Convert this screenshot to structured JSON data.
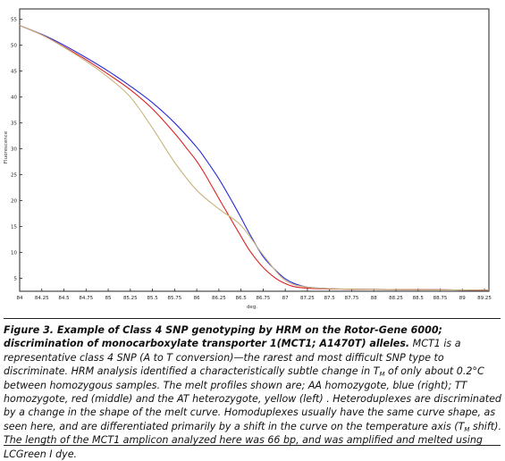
{
  "chart_data": {
    "type": "line",
    "ylabel": "Fluorescence",
    "xlabel": "deg.",
    "xlim": [
      84,
      89.3
    ],
    "ylim": [
      2.5,
      57
    ],
    "x_ticks": [
      "84",
      "84.25",
      "84.5",
      "84.75",
      "85",
      "85.25",
      "85.5",
      "85.75",
      "86",
      "86.25",
      "86.5",
      "86.75",
      "87",
      "87.25",
      "87.5",
      "87.75",
      "88",
      "88.25",
      "88.5",
      "88.75",
      "89",
      "89.25"
    ],
    "y_ticks": [
      "5",
      "10",
      "15",
      "20",
      "25",
      "30",
      "35",
      "40",
      "45",
      "50",
      "55"
    ],
    "grid": false,
    "series": [
      {
        "color": "#2a2ad8",
        "x": [
          84,
          84.25,
          84.5,
          84.75,
          85,
          85.25,
          85.5,
          85.75,
          86,
          86.1,
          86.25,
          86.4,
          86.5,
          86.6,
          86.75,
          86.9,
          87,
          87.1,
          87.25,
          87.5,
          87.75,
          88,
          88.5,
          89,
          89.35
        ],
        "y": [
          53.8,
          52.1,
          50,
          47.6,
          45,
          42.1,
          38.9,
          35,
          30.3,
          28,
          24.2,
          19.8,
          16.7,
          13.5,
          9.2,
          6.4,
          4.9,
          4,
          3.3,
          3,
          2.9,
          2.85,
          2.8,
          2.75,
          2.7
        ]
      },
      {
        "color": "#dd2222",
        "x": [
          84,
          84.25,
          84.5,
          84.75,
          85,
          85.25,
          85.5,
          85.75,
          85.9,
          86,
          86.1,
          86.25,
          86.4,
          86.5,
          86.6,
          86.75,
          86.9,
          87,
          87.1,
          87.25,
          87.5,
          87.75,
          88,
          88.5,
          89,
          89.35
        ],
        "y": [
          53.8,
          52,
          49.7,
          47.2,
          44.4,
          41.4,
          37.7,
          33,
          29.8,
          27.6,
          24.9,
          20.4,
          16,
          13.1,
          10.3,
          7.1,
          4.9,
          4,
          3.4,
          3.1,
          2.95,
          2.9,
          2.85,
          2.8,
          2.75,
          2.7
        ]
      },
      {
        "color": "#c9b47e",
        "x": [
          84,
          84.25,
          84.5,
          84.75,
          85,
          85.25,
          85.5,
          85.75,
          86,
          86.25,
          86.5,
          86.75,
          87,
          87.25,
          87.5,
          87.75,
          88,
          88.5,
          89,
          89.35
        ],
        "y": [
          53.8,
          52,
          49.6,
          46.9,
          43.8,
          40,
          34,
          27.4,
          22,
          18.4,
          15.2,
          9.5,
          4.6,
          3.3,
          3,
          2.9,
          2.85,
          2.8,
          2.75,
          2.7
        ]
      }
    ]
  },
  "caption": {
    "title": "Figure 3. Example of Class 4 SNP genotyping by HRM on the Rotor-Gene 6000; discrimination of monocarboxylate transporter 1(MCT1; A1470T) alleles.",
    "text_1": " MCT1 is a representative class 4 SNP (A to T conversion)—the rarest and most difficult SNP type to discriminate. HRM analysis identified a characteristically subtle change in T",
    "sub_1": "M",
    "text_2": " of only about 0.2°C between homozygous samples. The melt profiles shown are; AA homozygote, blue (right); TT homozygote, red (middle) and the AT heterozygote, yellow (left) . Heteroduplexes are discriminated by a change in the shape of the melt curve. Homoduplexes usually have the same curve shape, as seen here, and are differentiated primarily by a shift in the curve on the temperature axis (T",
    "sub_2": "M",
    "text_3": " shift). The length of the MCT1 amplicon analyzed here was 66 bp, and was amplified and melted using LCGreen I dye."
  }
}
